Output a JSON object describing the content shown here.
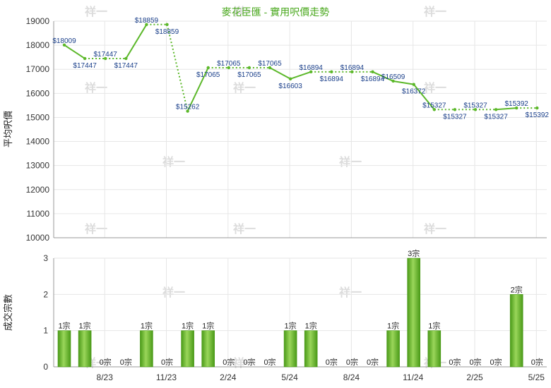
{
  "chart_data": [
    {
      "type": "line",
      "title": "麥花臣匯 - 實用呎價走勢",
      "ylabel": "平均呎價",
      "ylim": [
        10000,
        19000
      ],
      "yticks": [
        10000,
        11000,
        12000,
        13000,
        14000,
        15000,
        16000,
        17000,
        18000,
        19000
      ],
      "x_tick_labels": [
        "8/23",
        "11/23",
        "2/24",
        "5/24",
        "8/24",
        "11/24",
        "2/25",
        "5/25"
      ],
      "grid": true,
      "series": [
        {
          "values": [
            18009,
            17447,
            17447,
            17447,
            18859,
            18859,
            15262,
            17065,
            17065,
            17065,
            17065,
            16603,
            16894,
            16894,
            16894,
            16894,
            16509,
            16372,
            15327,
            15327,
            15327,
            15327,
            15392,
            15392
          ],
          "labels": [
            "$18009",
            "$17447",
            "$17447",
            "$17447",
            "$18859",
            "$18859",
            "$15262",
            "$17065",
            "$17065",
            "$17065",
            "$17065",
            "$16603",
            "$16894",
            "$16894",
            "$16894",
            "$16894",
            "$16509",
            "$16372",
            "$15327",
            "$15327",
            "$15327",
            "$15327",
            "$15392",
            "$15392"
          ],
          "interpolated": [
            false,
            false,
            true,
            false,
            false,
            true,
            false,
            false,
            true,
            true,
            false,
            false,
            false,
            true,
            true,
            false,
            false,
            false,
            false,
            true,
            true,
            false,
            false,
            true
          ],
          "color": "#5cb82a"
        }
      ]
    },
    {
      "type": "bar",
      "ylabel": "成交宗數",
      "ylim": [
        0,
        3
      ],
      "yticks": [
        0,
        1,
        2,
        3
      ],
      "x_tick_labels": [
        "8/23",
        "11/23",
        "2/24",
        "5/24",
        "8/24",
        "11/24",
        "2/25",
        "5/25"
      ],
      "series": [
        {
          "values": [
            1,
            1,
            0,
            0,
            1,
            0,
            1,
            1,
            0,
            0,
            0,
            1,
            1,
            0,
            0,
            0,
            1,
            3,
            1,
            0,
            0,
            0,
            2,
            0
          ],
          "labels": [
            "1宗",
            "1宗",
            "0宗",
            "0宗",
            "1宗",
            "0宗",
            "1宗",
            "1宗",
            "0宗",
            "0宗",
            "0宗",
            "1宗",
            "1宗",
            "0宗",
            "0宗",
            "0宗",
            "1宗",
            "3宗",
            "1宗",
            "0宗",
            "0宗",
            "0宗",
            "2宗",
            "0宗"
          ],
          "color": "#6cc12e"
        }
      ]
    }
  ],
  "watermark": "祥一",
  "colors": {
    "line": "#5cb82a",
    "bar": "#6cc12e",
    "bar_dark": "#4a9a18",
    "grid": "#e6e6e6",
    "axis": "#999999",
    "title": "#4aa81e"
  }
}
